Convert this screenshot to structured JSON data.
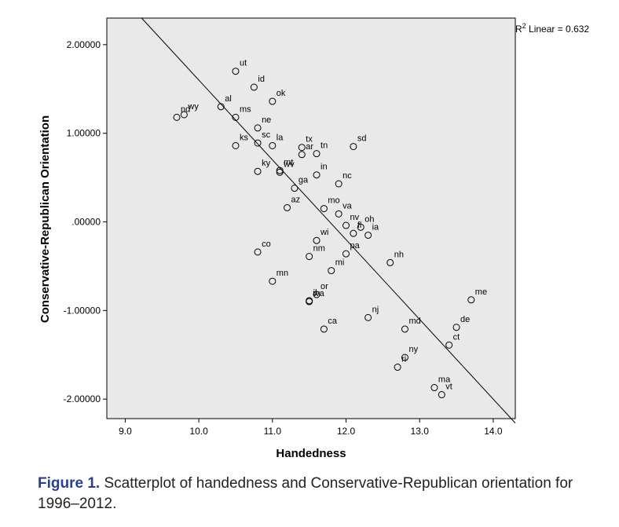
{
  "chart_data": {
    "type": "scatter",
    "xlabel": "Handedness",
    "ylabel": "Conservative-Republican Orientation",
    "xlim": [
      8.75,
      14.3
    ],
    "ylim": [
      -2.22,
      2.3
    ],
    "x_ticks": [
      9.0,
      10.0,
      11.0,
      12.0,
      13.0,
      14.0
    ],
    "x_tick_labels": [
      "9.0",
      "10.0",
      "11.0",
      "12.0",
      "13.0",
      "14.0"
    ],
    "y_ticks": [
      2.0,
      1.0,
      0.0,
      -1.0,
      -2.0
    ],
    "y_tick_labels": [
      "2.00000",
      "1.00000",
      ".00000",
      "-1.00000",
      "-2.00000"
    ],
    "fit_line": {
      "label_base": "R",
      "label_sup": "2",
      "label_rest": " Linear = 0.632",
      "slope": -0.9,
      "intercept": 10.6
    },
    "points": [
      {
        "label": "ut",
        "x": 10.5,
        "y": 1.7
      },
      {
        "label": "id",
        "x": 10.75,
        "y": 1.52
      },
      {
        "label": "ok",
        "x": 11.0,
        "y": 1.36
      },
      {
        "label": "al",
        "x": 10.3,
        "y": 1.3
      },
      {
        "label": "ms",
        "x": 10.5,
        "y": 1.18
      },
      {
        "label": "nd",
        "x": 9.7,
        "y": 1.18
      },
      {
        "label": "wy",
        "x": 9.8,
        "y": 1.21
      },
      {
        "label": "ne",
        "x": 10.8,
        "y": 1.06
      },
      {
        "label": "ks",
        "x": 10.5,
        "y": 0.86
      },
      {
        "label": "sc",
        "x": 10.8,
        "y": 0.89
      },
      {
        "label": "la",
        "x": 11.0,
        "y": 0.86
      },
      {
        "label": "tx",
        "x": 11.4,
        "y": 0.84
      },
      {
        "label": "tn",
        "x": 11.6,
        "y": 0.77
      },
      {
        "label": "sd",
        "x": 12.1,
        "y": 0.85
      },
      {
        "label": "ar",
        "x": 11.4,
        "y": 0.76
      },
      {
        "label": "ky",
        "x": 10.8,
        "y": 0.57
      },
      {
        "label": "mt",
        "x": 11.1,
        "y": 0.58
      },
      {
        "label": "wv",
        "x": 11.1,
        "y": 0.56
      },
      {
        "label": "in",
        "x": 11.6,
        "y": 0.53
      },
      {
        "label": "nc",
        "x": 11.9,
        "y": 0.43
      },
      {
        "label": "ga",
        "x": 11.3,
        "y": 0.38
      },
      {
        "label": "az",
        "x": 11.2,
        "y": 0.16
      },
      {
        "label": "mo",
        "x": 11.7,
        "y": 0.15
      },
      {
        "label": "va",
        "x": 11.9,
        "y": 0.09
      },
      {
        "label": "oh",
        "x": 12.2,
        "y": -0.06
      },
      {
        "label": "nv",
        "x": 12.0,
        "y": -0.04
      },
      {
        "label": "ia",
        "x": 12.3,
        "y": -0.15
      },
      {
        "label": "fl",
        "x": 12.1,
        "y": -0.13
      },
      {
        "label": "wi",
        "x": 11.6,
        "y": -0.21
      },
      {
        "label": "pa",
        "x": 12.0,
        "y": -0.36
      },
      {
        "label": "nh",
        "x": 12.6,
        "y": -0.46
      },
      {
        "label": "co",
        "x": 10.8,
        "y": -0.34
      },
      {
        "label": "nm",
        "x": 11.5,
        "y": -0.39
      },
      {
        "label": "mi",
        "x": 11.8,
        "y": -0.55
      },
      {
        "label": "mn",
        "x": 11.0,
        "y": -0.67
      },
      {
        "label": "or",
        "x": 11.6,
        "y": -0.82
      },
      {
        "label": "il",
        "x": 11.5,
        "y": -0.89
      },
      {
        "label": "wa",
        "x": 11.5,
        "y": -0.9
      },
      {
        "label": "ca",
        "x": 11.7,
        "y": -1.21
      },
      {
        "label": "nj",
        "x": 12.3,
        "y": -1.08
      },
      {
        "label": "md",
        "x": 12.8,
        "y": -1.21
      },
      {
        "label": "me",
        "x": 13.7,
        "y": -0.88
      },
      {
        "label": "de",
        "x": 13.5,
        "y": -1.19
      },
      {
        "label": "ct",
        "x": 13.4,
        "y": -1.39
      },
      {
        "label": "ny",
        "x": 12.8,
        "y": -1.53
      },
      {
        "label": "ri",
        "x": 12.7,
        "y": -1.64
      },
      {
        "label": "ma",
        "x": 13.2,
        "y": -1.87
      },
      {
        "label": "vt",
        "x": 13.3,
        "y": -1.95
      }
    ]
  },
  "caption": {
    "label": "Figure 1.",
    "text": " Scatterplot of handedness and Conservative-Republican orientation for 1996–2012."
  }
}
